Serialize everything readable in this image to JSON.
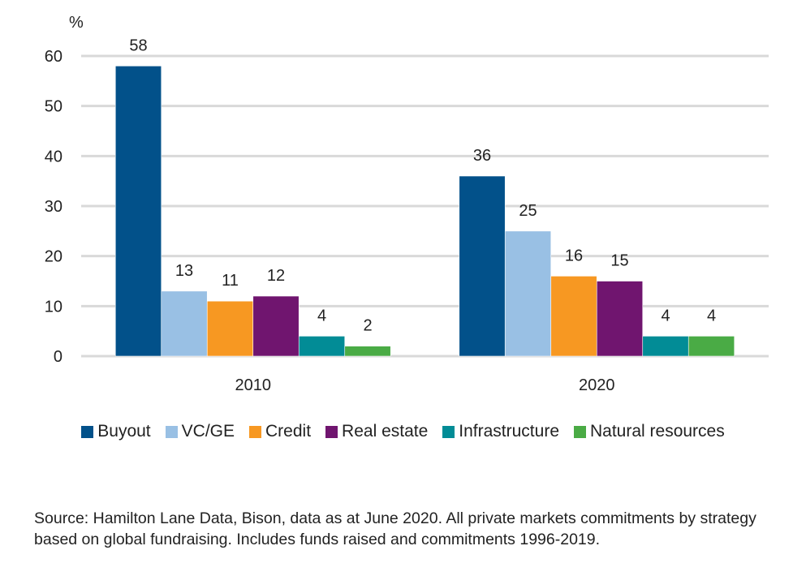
{
  "chart_data": {
    "type": "bar",
    "title": "",
    "ylabel": "%",
    "xlabel": "",
    "ylim": [
      0,
      60
    ],
    "yticks": [
      0,
      10,
      20,
      30,
      40,
      50,
      60
    ],
    "grid": true,
    "legend_position": "bottom",
    "categories": [
      "2010",
      "2020"
    ],
    "series": [
      {
        "name": "Buyout",
        "color": "#02518a",
        "values": [
          58,
          36
        ]
      },
      {
        "name": "VC/GE",
        "color": "#99c0e4",
        "values": [
          13,
          25
        ]
      },
      {
        "name": "Credit",
        "color": "#f79822",
        "values": [
          11,
          16
        ]
      },
      {
        "name": "Real estate",
        "color": "#70156f",
        "values": [
          12,
          15
        ]
      },
      {
        "name": "Infrastructure",
        "color": "#028c96",
        "values": [
          4,
          4
        ]
      },
      {
        "name": "Natural resources",
        "color": "#4aab45",
        "values": [
          2,
          4
        ]
      }
    ]
  },
  "source_note": "Source: Hamilton Lane Data, Bison, data as at June 2020. All private markets commitments by strategy based on global fundraising. Includes funds raised and commitments 1996-2019."
}
